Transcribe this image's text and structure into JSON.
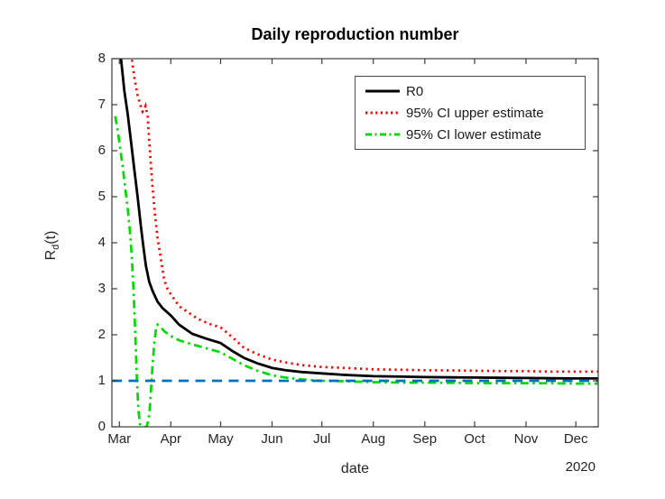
{
  "figure": {
    "title": "Daily reproduction number",
    "xlabel": "date",
    "ylabel_base": "R",
    "ylabel_sub": "d",
    "ylabel_rest": "(t)",
    "year_label": "2020"
  },
  "chart_data": {
    "type": "line",
    "title": "Daily reproduction number",
    "xlabel": "date",
    "ylabel": "R_d(t)",
    "x_unit": "days since Mar 1, 2020",
    "grid": false,
    "legend_position": "upper right",
    "x_axis": {
      "range": [
        -4.5,
        288.5
      ],
      "ticks": [
        {
          "label": "Mar",
          "day": 0
        },
        {
          "label": "Apr",
          "day": 31
        },
        {
          "label": "May",
          "day": 61
        },
        {
          "label": "Jun",
          "day": 92
        },
        {
          "label": "Jul",
          "day": 122
        },
        {
          "label": "Aug",
          "day": 153
        },
        {
          "label": "Sep",
          "day": 184
        },
        {
          "label": "Oct",
          "day": 214
        },
        {
          "label": "Nov",
          "day": 245
        },
        {
          "label": "Dec",
          "day": 275
        }
      ],
      "secondary_label": "2020"
    },
    "y_axis": {
      "range": [
        0,
        8
      ],
      "ticks": [
        0,
        1,
        2,
        3,
        4,
        5,
        6,
        7,
        8
      ]
    },
    "series": [
      {
        "name": "R0",
        "color": "#000000",
        "style": "solid",
        "points": [
          [
            -1,
            9.0
          ],
          [
            1,
            8.0
          ],
          [
            3,
            7.3
          ],
          [
            5,
            6.8
          ],
          [
            7,
            6.2
          ],
          [
            9,
            5.6
          ],
          [
            11,
            5.0
          ],
          [
            13,
            4.35
          ],
          [
            14.5,
            3.9
          ],
          [
            16,
            3.5
          ],
          [
            18,
            3.15
          ],
          [
            20,
            2.95
          ],
          [
            23,
            2.72
          ],
          [
            26,
            2.58
          ],
          [
            31,
            2.42
          ],
          [
            36,
            2.22
          ],
          [
            44,
            2.02
          ],
          [
            52,
            1.92
          ],
          [
            61,
            1.82
          ],
          [
            68,
            1.65
          ],
          [
            75,
            1.5
          ],
          [
            83,
            1.38
          ],
          [
            92,
            1.28
          ],
          [
            100,
            1.23
          ],
          [
            110,
            1.19
          ],
          [
            122,
            1.16
          ],
          [
            135,
            1.13
          ],
          [
            153,
            1.1
          ],
          [
            170,
            1.09
          ],
          [
            184,
            1.08
          ],
          [
            200,
            1.075
          ],
          [
            214,
            1.07
          ],
          [
            230,
            1.065
          ],
          [
            245,
            1.06
          ],
          [
            260,
            1.055
          ],
          [
            275,
            1.05
          ],
          [
            289,
            1.05
          ]
        ]
      },
      {
        "name": "95% CI upper estimate",
        "color": "#ff0000",
        "style": "dotted",
        "points": [
          [
            6,
            8.6
          ],
          [
            7.5,
            8.0
          ],
          [
            9,
            7.6
          ],
          [
            11,
            7.2
          ],
          [
            13,
            6.95
          ],
          [
            14,
            6.85
          ],
          [
            15,
            6.9
          ],
          [
            15.8,
            6.97
          ],
          [
            17,
            6.75
          ],
          [
            18,
            6.2
          ],
          [
            19,
            5.7
          ],
          [
            20,
            5.2
          ],
          [
            21.5,
            4.6
          ],
          [
            23,
            4.1
          ],
          [
            25,
            3.65
          ],
          [
            27,
            3.2
          ],
          [
            29,
            3.0
          ],
          [
            31,
            2.88
          ],
          [
            36,
            2.62
          ],
          [
            41,
            2.5
          ],
          [
            47,
            2.35
          ],
          [
            54,
            2.24
          ],
          [
            61,
            2.16
          ],
          [
            68,
            1.95
          ],
          [
            75,
            1.72
          ],
          [
            83,
            1.58
          ],
          [
            92,
            1.46
          ],
          [
            100,
            1.4
          ],
          [
            110,
            1.34
          ],
          [
            122,
            1.3
          ],
          [
            135,
            1.28
          ],
          [
            153,
            1.25
          ],
          [
            170,
            1.24
          ],
          [
            184,
            1.23
          ],
          [
            200,
            1.225
          ],
          [
            214,
            1.22
          ],
          [
            230,
            1.21
          ],
          [
            245,
            1.21
          ],
          [
            260,
            1.2
          ],
          [
            275,
            1.2
          ],
          [
            289,
            1.2
          ]
        ]
      },
      {
        "name": "95% CI lower estimate",
        "color": "#00dc00",
        "style": "dash-dot",
        "points": [
          [
            -2.5,
            6.75
          ],
          [
            -1,
            6.45
          ],
          [
            0.5,
            6.05
          ],
          [
            2,
            5.65
          ],
          [
            3.5,
            5.2
          ],
          [
            5,
            4.75
          ],
          [
            6.5,
            4.2
          ],
          [
            7.5,
            3.7
          ],
          [
            8.5,
            3.0
          ],
          [
            9.5,
            2.1
          ],
          [
            10.5,
            1.1
          ],
          [
            11.5,
            0.35
          ],
          [
            12.5,
            0.05
          ],
          [
            14,
            0.0
          ],
          [
            16.5,
            0.0
          ],
          [
            18,
            0.25
          ],
          [
            19,
            0.75
          ],
          [
            20,
            1.35
          ],
          [
            21,
            1.8
          ],
          [
            22,
            2.1
          ],
          [
            23,
            2.22
          ],
          [
            24.5,
            2.18
          ],
          [
            27,
            2.08
          ],
          [
            31,
            1.97
          ],
          [
            36,
            1.88
          ],
          [
            44,
            1.79
          ],
          [
            52,
            1.71
          ],
          [
            61,
            1.62
          ],
          [
            68,
            1.48
          ],
          [
            75,
            1.34
          ],
          [
            83,
            1.22
          ],
          [
            92,
            1.12
          ],
          [
            100,
            1.07
          ],
          [
            110,
            1.03
          ],
          [
            122,
            1.0
          ],
          [
            135,
            0.99
          ],
          [
            153,
            0.97
          ],
          [
            170,
            0.96
          ],
          [
            184,
            0.96
          ],
          [
            200,
            0.955
          ],
          [
            214,
            0.95
          ],
          [
            230,
            0.95
          ],
          [
            245,
            0.95
          ],
          [
            260,
            0.945
          ],
          [
            275,
            0.94
          ],
          [
            289,
            0.94
          ]
        ]
      }
    ],
    "reference_line": {
      "name": "threshold R=1",
      "y": 1,
      "color": "#0072bd",
      "style": "dashed"
    },
    "colors": {
      "axis": "#3c3c3c",
      "text": "#262626",
      "background": "#ffffff"
    }
  }
}
